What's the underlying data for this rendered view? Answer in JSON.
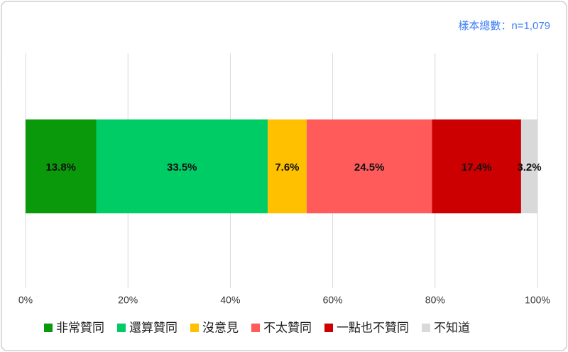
{
  "chart_data": {
    "type": "stacked_barh",
    "annotation": "樣本總數：n=1,079",
    "categories": [
      null
    ],
    "series": [
      {
        "name": "非常贊同",
        "color": "#0a990a",
        "values": [
          13.8
        ],
        "value_labels": [
          "13.8%"
        ]
      },
      {
        "name": "還算贊同",
        "color": "#00cc66",
        "values": [
          33.5
        ],
        "value_labels": [
          "33.5%"
        ]
      },
      {
        "name": "沒意見",
        "color": "#ffc000",
        "values": [
          7.6
        ],
        "value_labels": [
          "7.6%"
        ]
      },
      {
        "name": "不太贊同",
        "color": "#ff5b5b",
        "values": [
          24.5
        ],
        "value_labels": [
          "24.5%"
        ]
      },
      {
        "name": "一點也不贊同",
        "color": "#cc0000",
        "values": [
          17.4
        ],
        "value_labels": [
          "17.4%"
        ]
      },
      {
        "name": "不知道",
        "color": "#d9d9d9",
        "values": [
          3.2
        ],
        "value_labels": [
          "3.2%"
        ]
      }
    ],
    "xlim": [
      0,
      100
    ],
    "xticks": [
      {
        "value": 0,
        "label": "0%"
      },
      {
        "value": 20,
        "label": "20%"
      },
      {
        "value": 40,
        "label": "40%"
      },
      {
        "value": 60,
        "label": "60%"
      },
      {
        "value": 80,
        "label": "80%"
      },
      {
        "value": 100,
        "label": "100%"
      }
    ],
    "grid": true,
    "legend": "bottom"
  }
}
